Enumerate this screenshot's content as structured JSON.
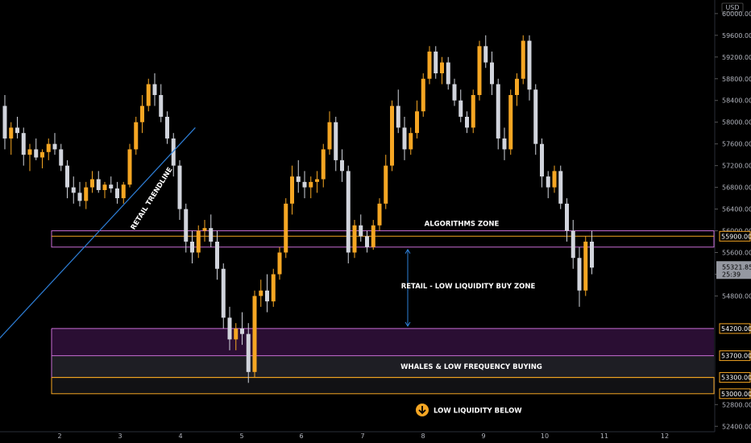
{
  "chart_data": {
    "type": "candlestick",
    "currency_label": "USD",
    "y_ticks": [
      52400,
      52800,
      53000,
      53300,
      53700,
      54200,
      54800,
      55200,
      55600,
      55900,
      56000,
      56400,
      56800,
      57200,
      57600,
      58000,
      58400,
      58800,
      59200,
      59600,
      60000
    ],
    "ylim": [
      52300,
      60250
    ],
    "x_ticks": [
      "2",
      "3",
      "4",
      "5",
      "6",
      "7",
      "8",
      "9",
      "10",
      "11",
      "12"
    ],
    "current_price": "55321.85",
    "countdown": "25:39",
    "price_tags": [
      {
        "value": "55900.00",
        "style": "orange"
      },
      {
        "value": "54200.00",
        "style": "orange"
      },
      {
        "value": "53700.00",
        "style": "orange"
      },
      {
        "value": "53300.00",
        "style": "orange"
      },
      {
        "value": "53000.00",
        "style": "orange"
      }
    ],
    "zones": [
      {
        "name": "algorithms-zone",
        "label": "ALGORITHMS ZONE",
        "from": 55700,
        "to": 56000
      },
      {
        "name": "retail-low-liquidity-zone",
        "label": "RETAIL - LOW LIQUIDITY BUY ZONE",
        "from": 54200,
        "to": 55700
      },
      {
        "name": "whales-zone",
        "label": "WHALES & LOW FREQUENCY BUYING",
        "from": 53000,
        "to": 54200
      }
    ],
    "annotations": {
      "trendline_label": "RETAIL TRENDLINE",
      "low_liquidity_label": "LOW LIQUIDITY BELOW"
    },
    "colors": {
      "bull": "#f5a623",
      "bear": "#d1d4dc",
      "zone_border": "#c86cd4",
      "orange_line": "#f5a623",
      "trendline": "#2e7fd8",
      "whale_fill_top": "#2a0e33",
      "whale_fill_bottom": "#1e1e24"
    },
    "candles": [
      [
        58300,
        58500,
        57500,
        57700
      ],
      [
        57700,
        58000,
        57400,
        57900
      ],
      [
        57900,
        58100,
        57700,
        57800
      ],
      [
        57800,
        57900,
        57200,
        57400
      ],
      [
        57400,
        57600,
        57100,
        57500
      ],
      [
        57500,
        57700,
        57300,
        57350
      ],
      [
        57350,
        57500,
        57150,
        57450
      ],
      [
        57450,
        57700,
        57300,
        57600
      ],
      [
        57600,
        57800,
        57400,
        57500
      ],
      [
        57500,
        57600,
        57100,
        57200
      ],
      [
        57200,
        57300,
        56600,
        56800
      ],
      [
        56800,
        57000,
        56500,
        56700
      ],
      [
        56700,
        56900,
        56450,
        56550
      ],
      [
        56550,
        56900,
        56400,
        56800
      ],
      [
        56800,
        57100,
        56700,
        56950
      ],
      [
        56950,
        57100,
        56700,
        56750
      ],
      [
        56750,
        56900,
        56600,
        56850
      ],
      [
        56850,
        57000,
        56700,
        56780
      ],
      [
        56780,
        56900,
        56500,
        56600
      ],
      [
        56600,
        56900,
        56500,
        56850
      ],
      [
        56850,
        57600,
        56800,
        57500
      ],
      [
        57500,
        58100,
        57400,
        58000
      ],
      [
        58000,
        58500,
        57800,
        58300
      ],
      [
        58300,
        58800,
        58200,
        58700
      ],
      [
        58700,
        58900,
        58300,
        58500
      ],
      [
        58500,
        58700,
        58000,
        58100
      ],
      [
        58100,
        58200,
        57600,
        57700
      ],
      [
        57700,
        57800,
        57000,
        57200
      ],
      [
        57200,
        57300,
        56200,
        56400
      ],
      [
        56400,
        56500,
        55600,
        55800
      ],
      [
        55800,
        56000,
        55400,
        55600
      ],
      [
        55600,
        56100,
        55500,
        56000
      ],
      [
        56000,
        56200,
        55800,
        56050
      ],
      [
        56050,
        56300,
        55700,
        55800
      ],
      [
        55800,
        56000,
        55100,
        55300
      ],
      [
        55300,
        55400,
        54200,
        54400
      ],
      [
        54400,
        54600,
        53800,
        54000
      ],
      [
        54000,
        54300,
        53800,
        54200
      ],
      [
        54200,
        54500,
        53900,
        54100
      ],
      [
        54100,
        54300,
        53200,
        53400
      ],
      [
        53400,
        54900,
        53300,
        54800
      ],
      [
        54800,
        55100,
        54600,
        54900
      ],
      [
        54900,
        55200,
        54500,
        54700
      ],
      [
        54700,
        55300,
        54600,
        55200
      ],
      [
        55200,
        55700,
        55100,
        55600
      ],
      [
        55600,
        56600,
        55500,
        56500
      ],
      [
        56500,
        57200,
        56300,
        57000
      ],
      [
        57000,
        57300,
        56700,
        56900
      ],
      [
        56900,
        57100,
        56600,
        56800
      ],
      [
        56800,
        57000,
        56600,
        56900
      ],
      [
        56900,
        57100,
        56700,
        56950
      ],
      [
        56950,
        57600,
        56800,
        57500
      ],
      [
        57500,
        58200,
        57400,
        58000
      ],
      [
        58000,
        58100,
        57100,
        57300
      ],
      [
        57300,
        57500,
        56900,
        57100
      ],
      [
        57100,
        57200,
        55400,
        55600
      ],
      [
        55600,
        56200,
        55500,
        56100
      ],
      [
        56100,
        56300,
        55800,
        55900
      ],
      [
        55900,
        56000,
        55600,
        55700
      ],
      [
        55700,
        56200,
        55650,
        56100
      ],
      [
        56100,
        56600,
        56000,
        56500
      ],
      [
        56500,
        57400,
        56400,
        57200
      ],
      [
        57200,
        58400,
        57100,
        58300
      ],
      [
        58300,
        58600,
        57800,
        57900
      ],
      [
        57900,
        58100,
        57300,
        57500
      ],
      [
        57500,
        57900,
        57400,
        57800
      ],
      [
        57800,
        58400,
        57700,
        58200
      ],
      [
        58200,
        58900,
        58100,
        58800
      ],
      [
        58800,
        59400,
        58700,
        59300
      ],
      [
        59300,
        59400,
        58800,
        58900
      ],
      [
        58900,
        59200,
        58700,
        59100
      ],
      [
        59100,
        59200,
        58600,
        58700
      ],
      [
        58700,
        58800,
        58300,
        58400
      ],
      [
        58400,
        58600,
        58000,
        58100
      ],
      [
        58100,
        58200,
        57800,
        57900
      ],
      [
        57900,
        58600,
        57800,
        58500
      ],
      [
        58500,
        59500,
        58400,
        59400
      ],
      [
        59400,
        59600,
        59000,
        59100
      ],
      [
        59100,
        59300,
        58500,
        58700
      ],
      [
        58700,
        58800,
        57500,
        57700
      ],
      [
        57700,
        57900,
        57300,
        57500
      ],
      [
        57500,
        58600,
        57400,
        58500
      ],
      [
        58500,
        58900,
        58300,
        58800
      ],
      [
        58800,
        59600,
        58700,
        59500
      ],
      [
        59500,
        59600,
        58400,
        58600
      ],
      [
        58600,
        58700,
        57400,
        57600
      ],
      [
        57600,
        57700,
        56800,
        57000
      ],
      [
        57000,
        57100,
        56600,
        56800
      ],
      [
        56800,
        57200,
        56700,
        57100
      ],
      [
        57100,
        57200,
        56400,
        56500
      ],
      [
        56500,
        56600,
        55800,
        56000
      ],
      [
        56000,
        56200,
        55300,
        55500
      ],
      [
        55500,
        55700,
        54600,
        54900
      ],
      [
        54900,
        55900,
        54800,
        55800
      ],
      [
        55800,
        56000,
        55200,
        55321.85
      ]
    ],
    "trendline_points": [
      [
        -1,
        54000
      ],
      [
        30.5,
        57900
      ]
    ]
  }
}
